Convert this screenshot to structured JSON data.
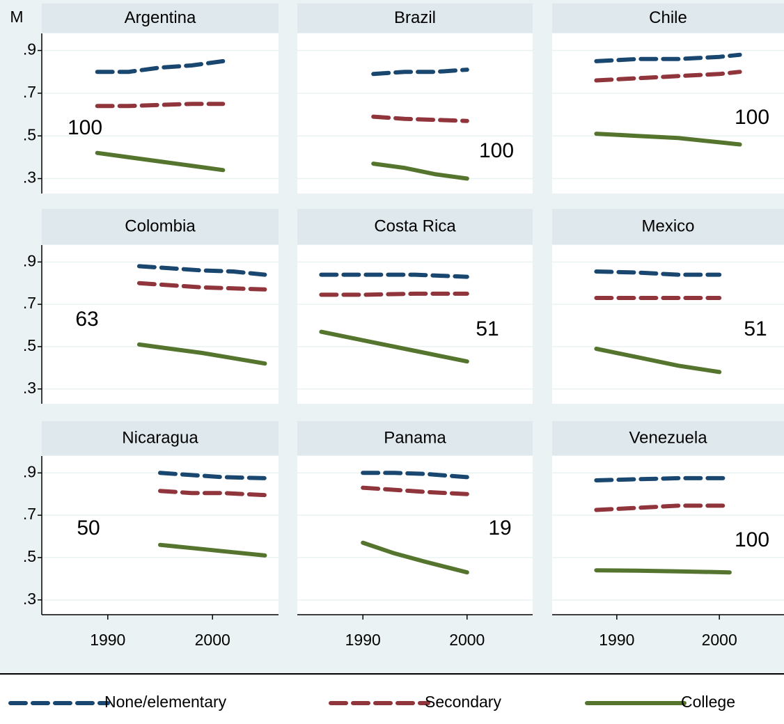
{
  "chart_data": {
    "type": "line",
    "y_label": "M",
    "xlim": [
      1983.7,
      2006.3
    ],
    "ylim": [
      0.23,
      0.98
    ],
    "xticks": [
      1990,
      2000
    ],
    "yticks": [
      {
        "value": 0.3,
        "label": ".3"
      },
      {
        "value": 0.5,
        "label": ".5"
      },
      {
        "value": 0.7,
        "label": ".7"
      },
      {
        "value": 0.9,
        "label": ".9"
      }
    ],
    "grid": true,
    "legend": [
      {
        "name": "None/elementary",
        "color": "#1a476f",
        "style": "dashed"
      },
      {
        "name": "Secondary",
        "color": "#90353b",
        "style": "dashed"
      },
      {
        "name": "College",
        "color": "#55752f",
        "style": "solid"
      }
    ],
    "panels": [
      {
        "title": "Argentina",
        "annotation": "100",
        "x": [
          1989,
          1992,
          1995,
          1998,
          2001
        ],
        "series": [
          {
            "values": [
              0.8,
              0.8,
              0.82,
              0.83,
              0.85
            ]
          },
          {
            "values": [
              0.64,
              0.64,
              0.645,
              0.65,
              0.65
            ]
          },
          {
            "values": [
              0.42,
              0.4,
              0.38,
              0.36,
              0.34
            ]
          }
        ]
      },
      {
        "title": "Brazil",
        "annotation": "100",
        "x": [
          1991,
          1994,
          1997,
          2000
        ],
        "series": [
          {
            "values": [
              0.79,
              0.8,
              0.8,
              0.81
            ]
          },
          {
            "values": [
              0.59,
              0.58,
              0.575,
              0.57
            ]
          },
          {
            "values": [
              0.37,
              0.35,
              0.32,
              0.3
            ]
          }
        ]
      },
      {
        "title": "Chile",
        "annotation": "100",
        "x": [
          1988,
          1992,
          1996,
          2000,
          2002
        ],
        "series": [
          {
            "values": [
              0.85,
              0.86,
              0.86,
              0.87,
              0.88
            ]
          },
          {
            "values": [
              0.76,
              0.77,
              0.78,
              0.79,
              0.8
            ]
          },
          {
            "values": [
              0.51,
              0.5,
              0.49,
              0.47,
              0.46
            ]
          }
        ]
      },
      {
        "title": "Colombia",
        "annotation": "63",
        "x": [
          1993,
          1996,
          1999,
          2002,
          2005
        ],
        "series": [
          {
            "values": [
              0.88,
              0.87,
              0.86,
              0.855,
              0.84
            ]
          },
          {
            "values": [
              0.8,
              0.79,
              0.78,
              0.775,
              0.77
            ]
          },
          {
            "values": [
              0.51,
              0.49,
              0.47,
              0.445,
              0.42
            ]
          }
        ]
      },
      {
        "title": "Costa Rica",
        "annotation": "51",
        "x": [
          1986,
          1990,
          1995,
          2000
        ],
        "series": [
          {
            "values": [
              0.84,
              0.84,
              0.84,
              0.83
            ]
          },
          {
            "values": [
              0.745,
              0.745,
              0.75,
              0.75
            ]
          },
          {
            "values": [
              0.57,
              0.53,
              0.48,
              0.43
            ]
          }
        ]
      },
      {
        "title": "Mexico",
        "annotation": "51",
        "x": [
          1988,
          1992,
          1996,
          2000
        ],
        "series": [
          {
            "values": [
              0.855,
              0.85,
              0.84,
              0.84
            ]
          },
          {
            "values": [
              0.73,
              0.73,
              0.73,
              0.73
            ]
          },
          {
            "values": [
              0.49,
              0.45,
              0.41,
              0.38
            ]
          }
        ]
      },
      {
        "title": "Nicaragua",
        "annotation": "50",
        "x": [
          1995,
          1998,
          2001,
          2005
        ],
        "series": [
          {
            "values": [
              0.9,
              0.89,
              0.88,
              0.875
            ]
          },
          {
            "values": [
              0.815,
              0.805,
              0.805,
              0.795
            ]
          },
          {
            "values": [
              0.56,
              0.545,
              0.53,
              0.51
            ]
          }
        ]
      },
      {
        "title": "Panama",
        "annotation": "19",
        "x": [
          1990,
          1993,
          1996,
          2000
        ],
        "series": [
          {
            "values": [
              0.9,
              0.9,
              0.895,
              0.88
            ]
          },
          {
            "values": [
              0.83,
              0.82,
              0.81,
              0.8
            ]
          },
          {
            "values": [
              0.57,
              0.52,
              0.48,
              0.43
            ]
          }
        ]
      },
      {
        "title": "Venezuela",
        "annotation": "100",
        "x": [
          1988,
          1992,
          1996,
          2001
        ],
        "series": [
          {
            "values": [
              0.865,
              0.87,
              0.875,
              0.875
            ]
          },
          {
            "values": [
              0.725,
              0.735,
              0.745,
              0.745
            ]
          },
          {
            "values": [
              0.44,
              0.438,
              0.435,
              0.43
            ]
          }
        ]
      }
    ]
  }
}
